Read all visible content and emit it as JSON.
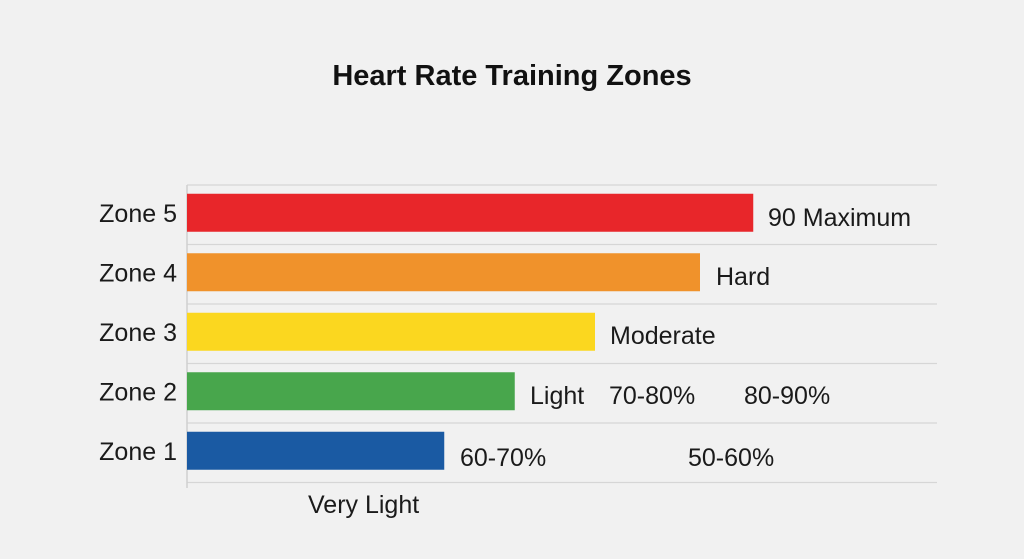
{
  "chart_data": {
    "type": "bar",
    "orientation": "horizontal",
    "title": "Heart Rate Training Zones",
    "xlabel": "",
    "ylabel": "",
    "categories": [
      "Zone 5",
      "Zone 4",
      "Zone 3",
      "Zone 2",
      "Zone 1"
    ],
    "values": [
      75.5,
      68.4,
      54.4,
      43.7,
      34.3
    ],
    "xlim": [
      0,
      100
    ],
    "colors": [
      "#e8262a",
      "#f0922b",
      "#fbd71f",
      "#48a64c",
      "#1a5aa3"
    ],
    "grid": true,
    "annotations": [
      {
        "text": "90 Maximum",
        "category": "Zone 5"
      },
      {
        "text": "Hard",
        "category": "Zone 4"
      },
      {
        "text": "Moderate",
        "category": "Zone 3"
      },
      {
        "text": "Light",
        "category": "Zone 2"
      },
      {
        "text": "70-80%",
        "category": "Zone 2"
      },
      {
        "text": "80-90%",
        "category": "Zone 2"
      },
      {
        "text": "60-70%",
        "category": "Zone 1"
      },
      {
        "text": "50-60%",
        "category": "Zone 1"
      },
      {
        "text": "Very Light",
        "category": "below axis"
      }
    ]
  }
}
